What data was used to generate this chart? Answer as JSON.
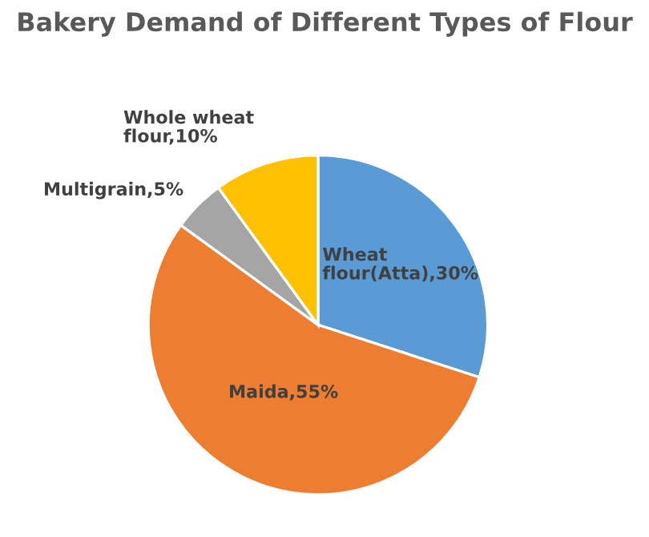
{
  "chart_data": {
    "type": "pie",
    "title": "Bakery Demand of Different Types of Flour",
    "categories": [
      "Wheat flour(Atta)",
      "Maida",
      "Multigrain",
      "Whole wheat flour"
    ],
    "values": [
      30,
      55,
      5,
      10
    ],
    "value_labels": [
      ",30%",
      ",55%",
      ",5%",
      ",10%"
    ],
    "colors": [
      "#5b9bd5",
      "#ed7d31",
      "#a5a5a5",
      "#ffc000"
    ],
    "legend": false
  }
}
